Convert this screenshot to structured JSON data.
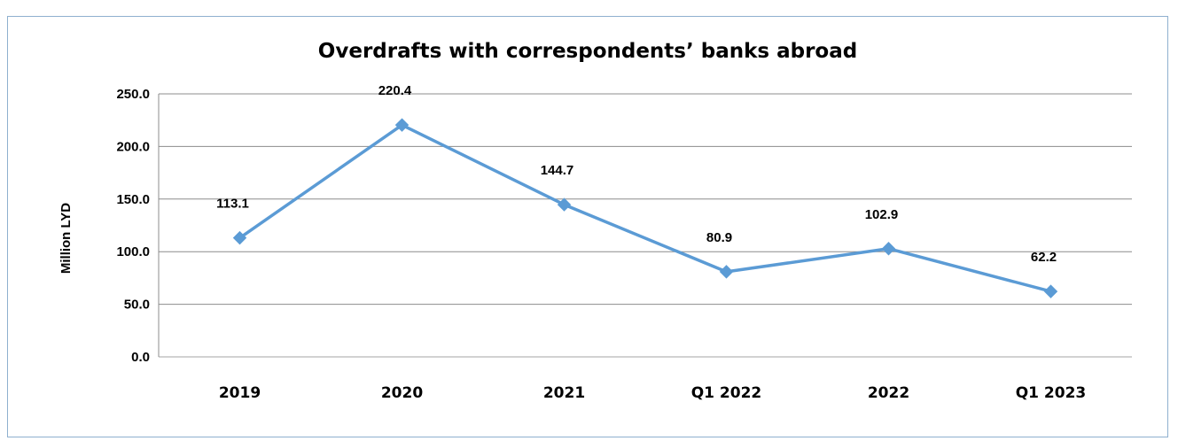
{
  "chart_data": {
    "type": "line",
    "title": "Overdrafts with correspondents’ banks abroad",
    "ylabel": "Million  LYD",
    "xlabel": "",
    "categories": [
      "2019",
      "2020",
      "2021",
      "Q1 2022",
      "2022",
      "Q1 2023"
    ],
    "values": [
      113.1,
      220.4,
      144.7,
      80.9,
      102.9,
      62.2
    ],
    "data_labels": [
      "113.1",
      "220.4",
      "144.7",
      "80.9",
      "102.9",
      "62.2"
    ],
    "y_ticks": [
      "0.0",
      "50.0",
      "100.0",
      "150.0",
      "200.0",
      "250.0"
    ],
    "ylim": [
      0,
      250
    ],
    "grid": true,
    "legend": "none",
    "line_color": "#5b9bd5",
    "marker": "diamond"
  }
}
